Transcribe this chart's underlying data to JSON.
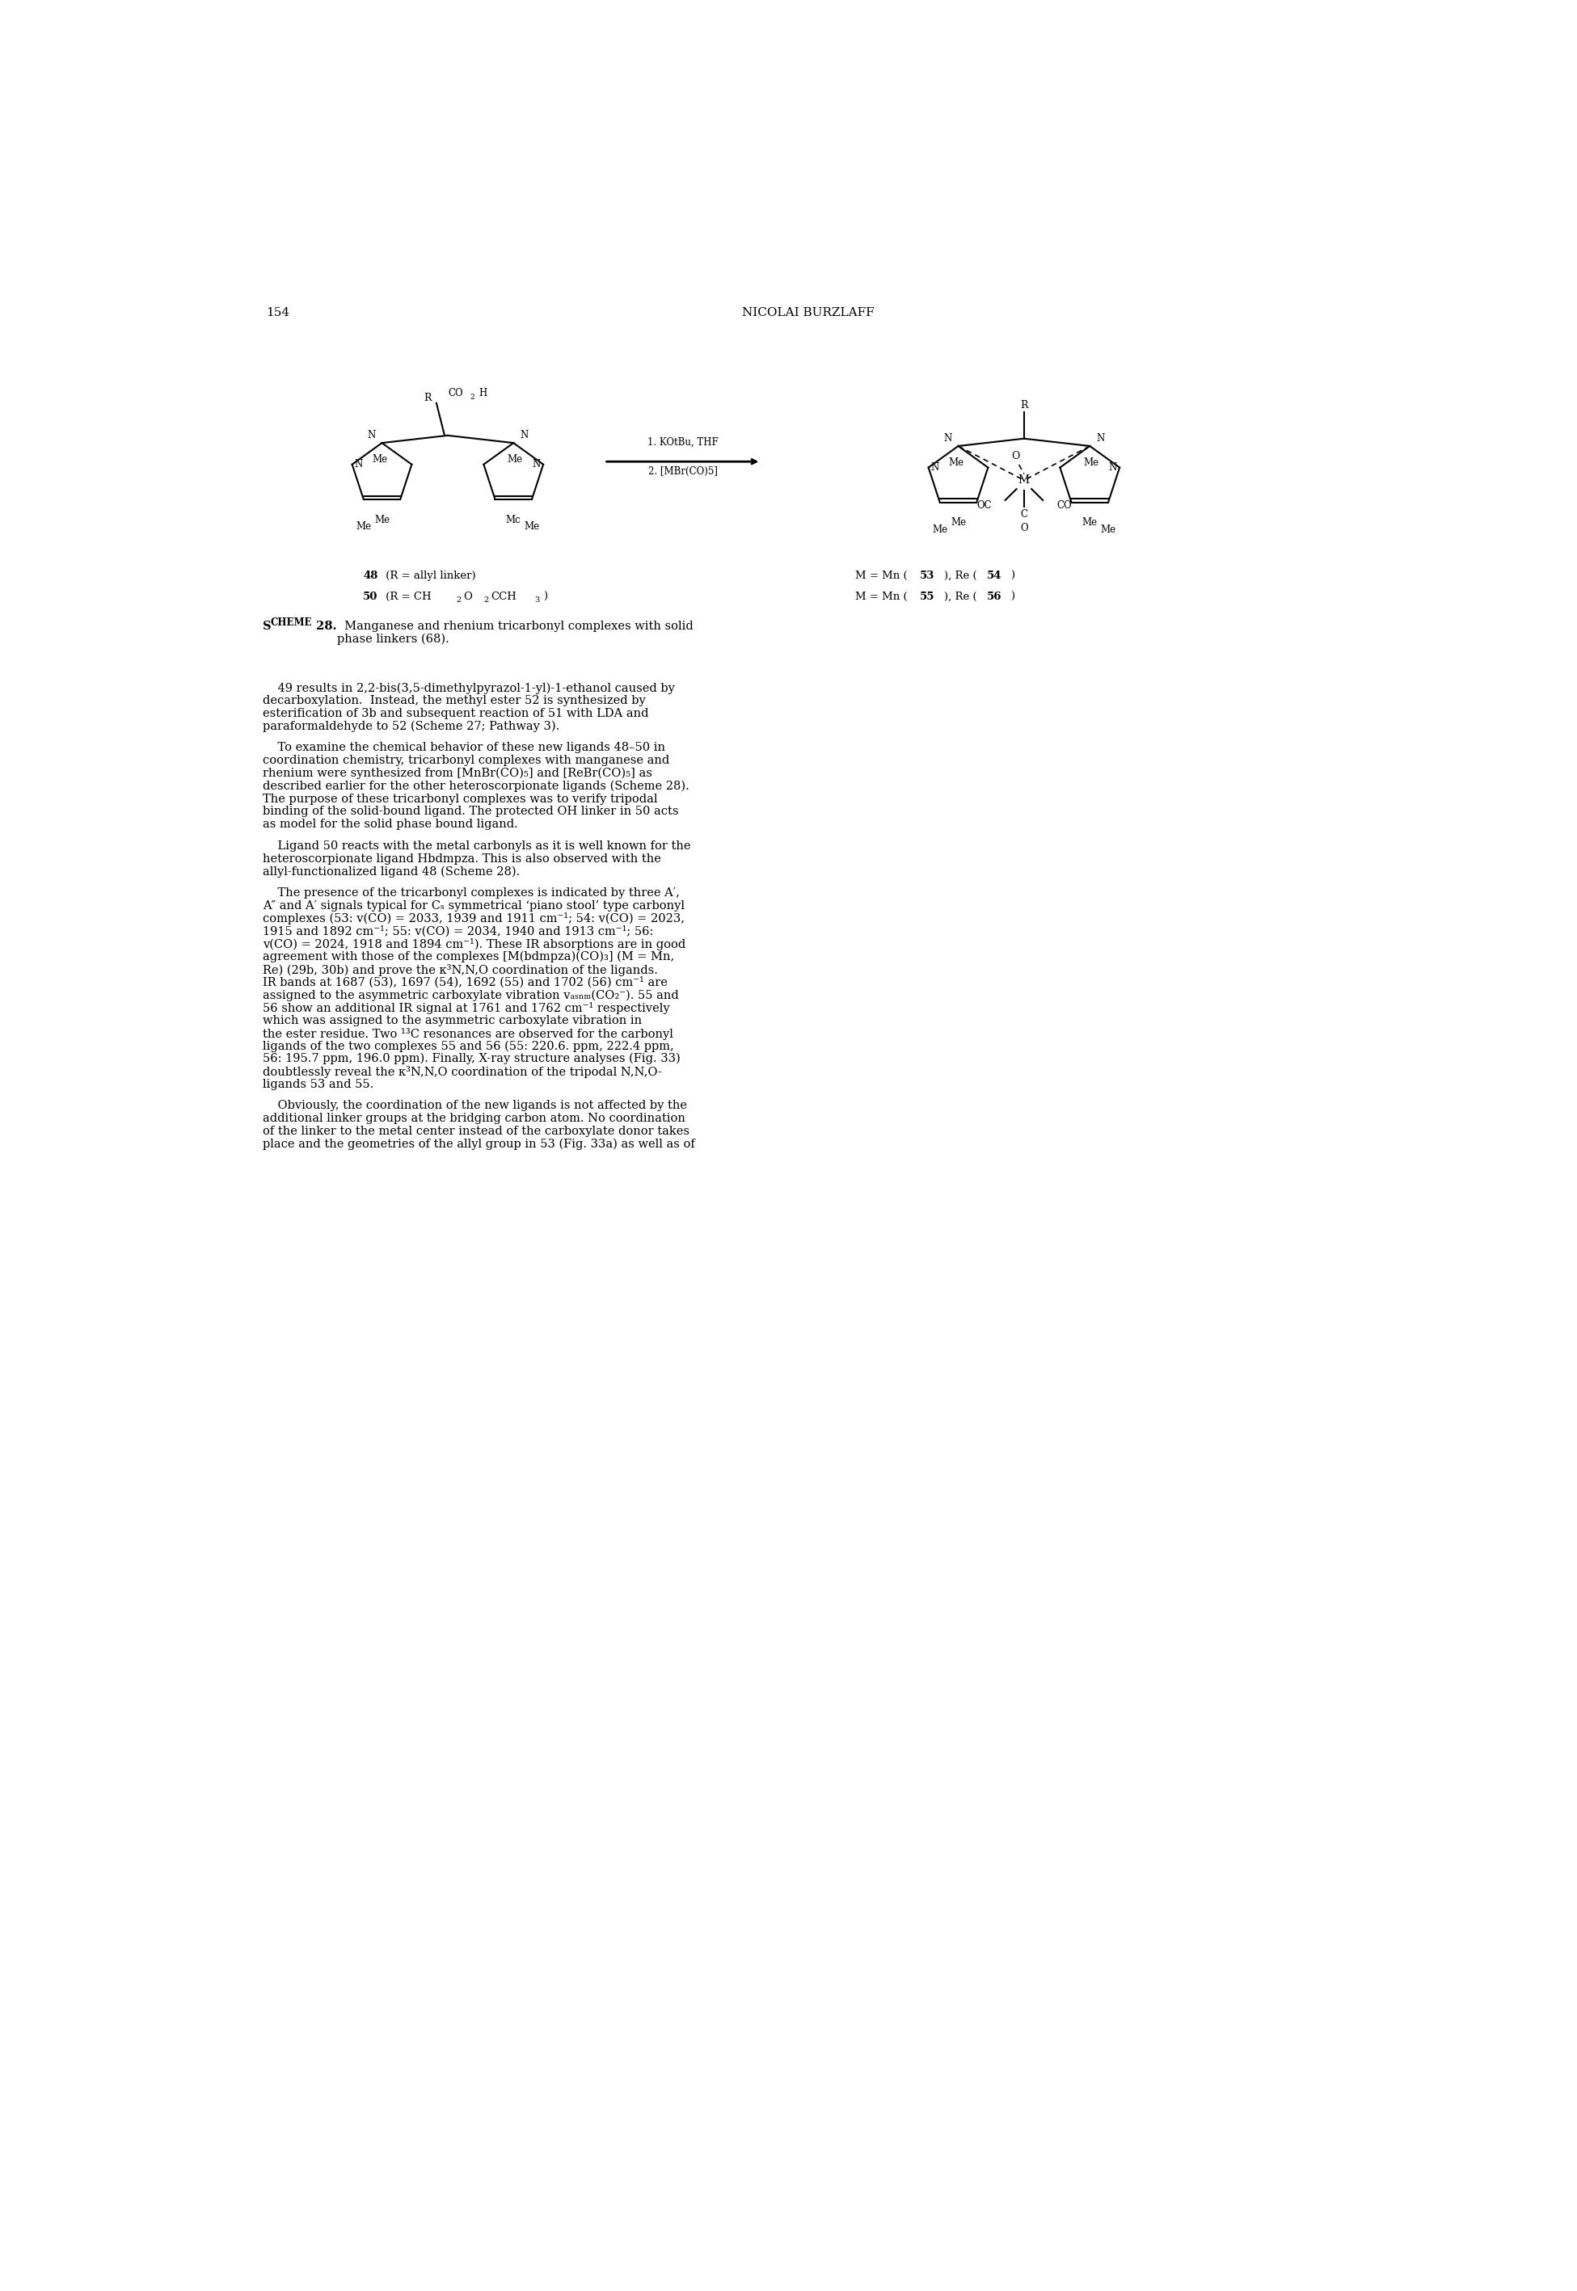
{
  "page_width": 19.51,
  "page_height": 28.35,
  "bg_color": "#ffffff",
  "page_number": "154",
  "header_title": "NICOLAI BURZLAFF",
  "scheme_caption_bold": "Scheme 28.",
  "scheme_caption_text": "Manganese and rhenium tricarbonyl complexes with solid phase linkers (68).",
  "left_label_1_bold": "48",
  "left_label_1_normal": " (R = allyl linker)",
  "left_label_2_bold": "50",
  "left_label_2_normal": " (R = CH",
  "right_label_1": "M = Mn (53), Re (54)",
  "right_label_2": "M = Mn (55), Re (56)",
  "reaction_cond_1": "1. KOtBu, THF",
  "reaction_cond_2": "2. [MBr(CO)",
  "reaction_cond_2_sub": "5",
  "reaction_cond_2_end": "]",
  "body_blocks": [
    {
      "lines": [
        "    49 results in 2,2-bis(3,5-dimethylpyrazol-1-yl)-1-ethanol caused by",
        "decarboxylation.  Instead, the methyl ester 52 is synthesized by",
        "esterification of 3b and subsequent reaction of 51 with LDA and",
        "paraformaldehyde to 52 (Scheme 27; Pathway 3)."
      ]
    },
    {
      "lines": [
        "    To examine the chemical behavior of these new ligands 48–50 in",
        "coordination chemistry, tricarbonyl complexes with manganese and",
        "rhenium were synthesized from [MnBr(CO)₅] and [ReBr(CO)₅] as",
        "described earlier for the other heteroscorpionate ligands (Scheme 28).",
        "The purpose of these tricarbonyl complexes was to verify tripodal",
        "binding of the solid-bound ligand. The protected OH linker in 50 acts",
        "as model for the solid phase bound ligand."
      ]
    },
    {
      "lines": [
        "    Ligand 50 reacts with the metal carbonyls as it is well known for the",
        "heteroscorpionate ligand Hbdmpza. This is also observed with the",
        "allyl-functionalized ligand 48 (Scheme 28)."
      ]
    },
    {
      "lines": [
        "    The presence of the tricarbonyl complexes is indicated by three A′,",
        "A″ and A′ signals typical for Cₛ symmetrical ‘piano stool’ type carbonyl",
        "complexes (53: v(CO) = 2033, 1939 and 1911 cm⁻¹; 54: v(CO) = 2023,",
        "1915 and 1892 cm⁻¹; 55: v(CO) = 2034, 1940 and 1913 cm⁻¹; 56:",
        "v(CO) = 2024, 1918 and 1894 cm⁻¹). These IR absorptions are in good",
        "agreement with those of the complexes [M(bdmpza)(CO)₃] (M = Mn,",
        "Re) (29b, 30b) and prove the κ³N,N,O coordination of the ligands.",
        "IR bands at 1687 (53), 1697 (54), 1692 (55) and 1702 (56) cm⁻¹ are",
        "assigned to the asymmetric carboxylate vibration vₐₛₙₘ(CO₂⁻). 55 and",
        "56 show an additional IR signal at 1761 and 1762 cm⁻¹ respectively",
        "which was assigned to the asymmetric carboxylate vibration in",
        "the ester residue. Two ¹³C resonances are observed for the carbonyl",
        "ligands of the two complexes 55 and 56 (55: 220.6. ppm, 222.4 ppm,",
        "56: 195.7 ppm, 196.0 ppm). Finally, X-ray structure analyses (Fig. 33)",
        "doubtlessly reveal the κ³N,N,O coordination of the tripodal N,N,O-",
        "ligands 53 and 55."
      ]
    },
    {
      "lines": [
        "    Obviously, the coordination of the new ligands is not affected by the",
        "additional linker groups at the bridging carbon atom. No coordination",
        "of the linker to the metal center instead of the carboxylate donor takes",
        "place and the geometries of the allyl group in 53 (Fig. 33a) as well as of"
      ]
    }
  ]
}
